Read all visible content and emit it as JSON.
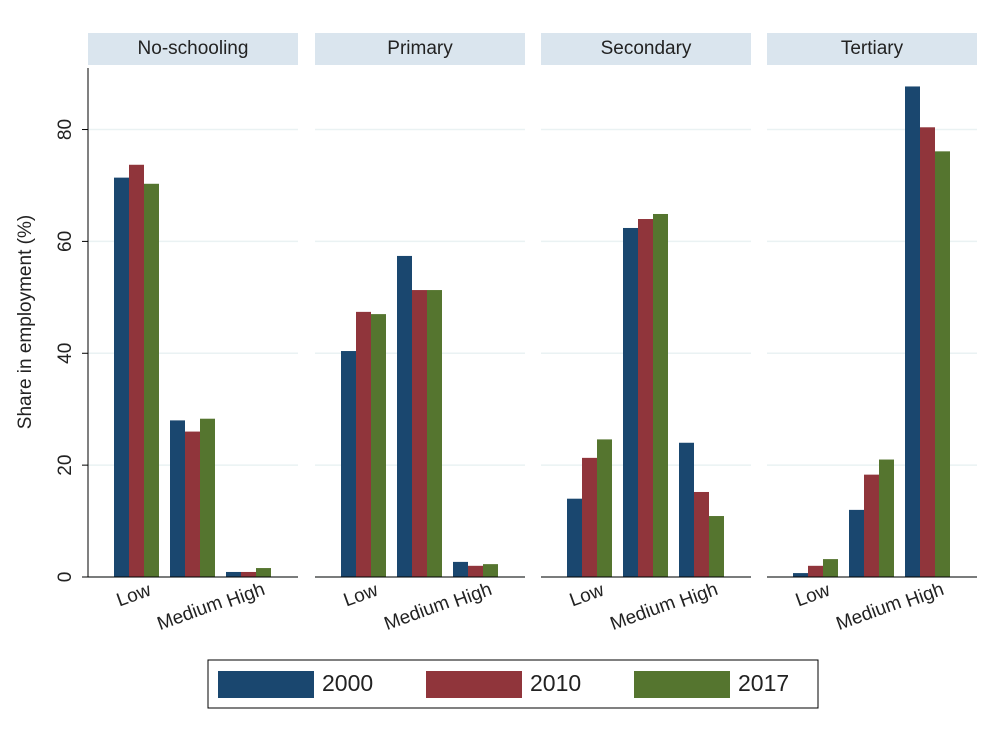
{
  "chart_data": [
    {
      "type": "bar",
      "title": "No-schooling",
      "ylabel": "Share in employment (%)",
      "categories": [
        "Low",
        "Medium",
        "High"
      ],
      "series": [
        {
          "name": "2000",
          "color": "#1a476f",
          "values": [
            71.4,
            28.0,
            0.9
          ]
        },
        {
          "name": "2010",
          "color": "#90353b",
          "values": [
            73.7,
            26.0,
            0.9
          ]
        },
        {
          "name": "2017",
          "color": "#55752f",
          "values": [
            70.3,
            28.3,
            1.6
          ]
        }
      ],
      "ylim": [
        0,
        91
      ],
      "yticks": [
        0,
        20,
        40,
        60,
        80
      ],
      "grid": true
    },
    {
      "type": "bar",
      "title": "Primary",
      "categories": [
        "Low",
        "Medium",
        "High"
      ],
      "series": [
        {
          "name": "2000",
          "color": "#1a476f",
          "values": [
            40.4,
            57.4,
            2.7
          ]
        },
        {
          "name": "2010",
          "color": "#90353b",
          "values": [
            47.4,
            51.3,
            2.0
          ]
        },
        {
          "name": "2017",
          "color": "#55752f",
          "values": [
            47.0,
            51.3,
            2.3
          ]
        }
      ],
      "ylim": [
        0,
        91
      ],
      "yticks": [
        0,
        20,
        40,
        60,
        80
      ],
      "grid": true
    },
    {
      "type": "bar",
      "title": "Secondary",
      "categories": [
        "Low",
        "Medium",
        "High"
      ],
      "series": [
        {
          "name": "2000",
          "color": "#1a476f",
          "values": [
            14.0,
            62.4,
            24.0
          ]
        },
        {
          "name": "2010",
          "color": "#90353b",
          "values": [
            21.3,
            64.0,
            15.2
          ]
        },
        {
          "name": "2017",
          "color": "#55752f",
          "values": [
            24.6,
            64.9,
            10.9
          ]
        }
      ],
      "ylim": [
        0,
        91
      ],
      "yticks": [
        0,
        20,
        40,
        60,
        80
      ],
      "grid": true
    },
    {
      "type": "bar",
      "title": "Tertiary",
      "categories": [
        "Low",
        "Medium",
        "High"
      ],
      "series": [
        {
          "name": "2000",
          "color": "#1a476f",
          "values": [
            0.7,
            12.0,
            87.7
          ]
        },
        {
          "name": "2010",
          "color": "#90353b",
          "values": [
            2.0,
            18.3,
            80.4
          ]
        },
        {
          "name": "2017",
          "color": "#55752f",
          "values": [
            3.2,
            21.0,
            76.1
          ]
        }
      ],
      "ylim": [
        0,
        91
      ],
      "yticks": [
        0,
        20,
        40,
        60,
        80
      ],
      "grid": true
    }
  ]
}
